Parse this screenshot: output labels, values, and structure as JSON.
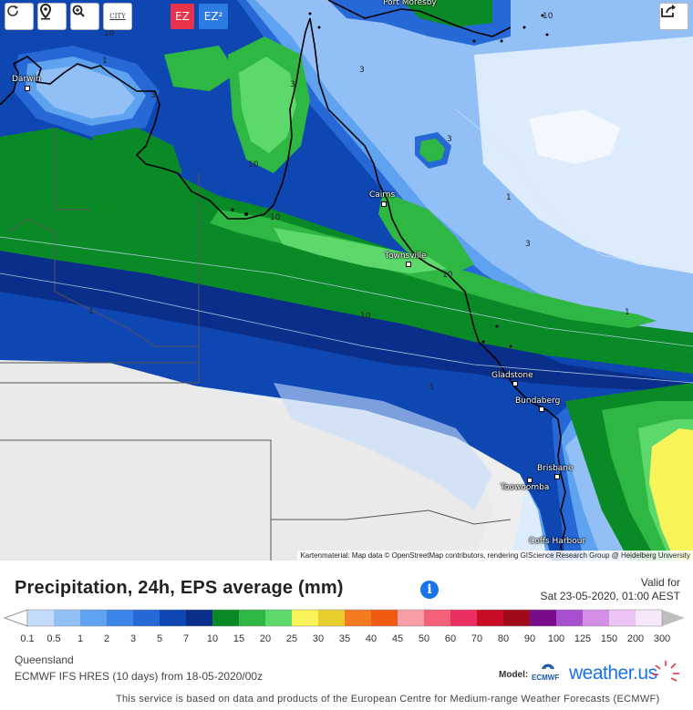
{
  "toolbar": {
    "reload_icon": "reload-icon",
    "pin_icon": "location-pin-icon",
    "zoom_icon": "zoom-icon",
    "city_label": "CITY",
    "ez_label": "EZ",
    "ez2_label": "EZ²",
    "share_icon": "share-icon"
  },
  "map": {
    "cities": {
      "port_moresby": "Port Moresby",
      "darwin": "Darwin",
      "cairns": "Cairns",
      "townsville": "Townsville",
      "gladstone": "Gladstone",
      "bundaberg": "Bundaberg",
      "brisbane": "Brisbane",
      "toowoomba": "Toowoomba",
      "coffs_harbour": "Coffs Harbour"
    },
    "contour_labels": {
      "darwin_10": "10",
      "darwin_1": "1",
      "darwin_3": "3",
      "north_3": "3",
      "pm_10": "10",
      "cape_3": "3",
      "gulf_10": "10",
      "coral_3": "3",
      "coral_1": "1",
      "gulf2_10": "10",
      "coast_10": "10",
      "inland_10": "10",
      "east_3": "3",
      "east_1": "1",
      "inland_1": "1",
      "south_3": "3"
    },
    "attribution": "Kartenmaterial: Map data © OpenStreetMap contributors, rendering GIScience Research Group @ Heidelberg University"
  },
  "header": {
    "title": "Precipitation, 24h, EPS average (mm)",
    "info_icon": "info-icon",
    "valid_label": "Valid for",
    "valid_time": "Sat 23-05-2020, 01:00 AEST"
  },
  "legend": {
    "ticks": [
      "0.1",
      "0.5",
      "1",
      "2",
      "3",
      "5",
      "7",
      "10",
      "15",
      "20",
      "25",
      "30",
      "35",
      "40",
      "45",
      "50",
      "60",
      "70",
      "80",
      "90",
      "100",
      "125",
      "150",
      "200",
      "300"
    ],
    "colors": [
      "#c4dcfb",
      "#92c0f6",
      "#5fa3f0",
      "#3d86e8",
      "#2668d6",
      "#0f47b2",
      "#0a2f8a",
      "#0a8a26",
      "#2fb743",
      "#5cd96a",
      "#f9f45a",
      "#e8cf2f",
      "#f47a22",
      "#f05a12",
      "#f99ea6",
      "#f46078",
      "#eb2f62",
      "#c80c25",
      "#a00a1a",
      "#7a0c8c",
      "#a74fcf",
      "#d38fe6",
      "#ecc4f3",
      "#f7e7fa"
    ],
    "end_low": "#ffffff",
    "end_high": "#bdbdbd"
  },
  "footer": {
    "region": "Queensland",
    "model_run": "ECMWF IFS HRES (10 days) from 18-05-2020/00z",
    "model_label": "Model:",
    "ecmwf_label": "ECMWF",
    "weather_us": "weather.us",
    "disclaimer": "This service is based on data and products of the European Centre for Medium-range Weather Forecasts (ECMWF)"
  }
}
